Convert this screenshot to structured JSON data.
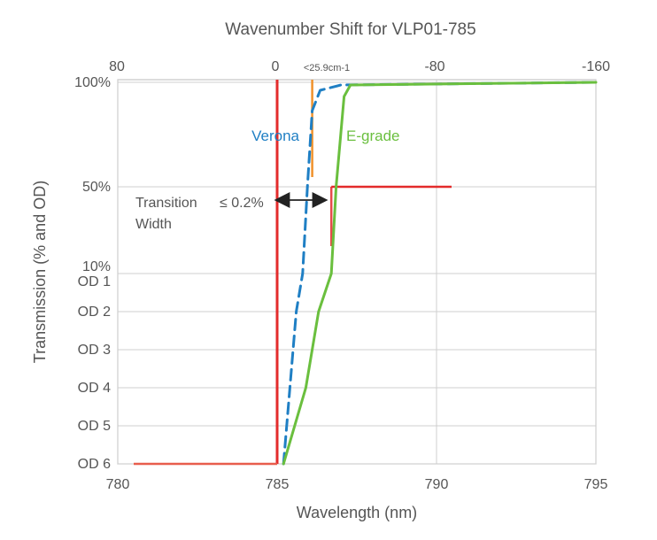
{
  "chart_data": {
    "type": "line",
    "title": "Wavenumber Shift for VLP01-785",
    "xlabel": "Wavelength (nm)",
    "ylabel": "Transmission (% and OD)",
    "xlim": [
      780,
      795
    ],
    "x_ticks": [
      780,
      785,
      790,
      795
    ],
    "x_tick_labels": [
      "780",
      "785",
      "790",
      "795"
    ],
    "top_axis": {
      "label_unit": "",
      "ticks": [
        {
          "value": 80,
          "label": "80"
        },
        {
          "value": 0,
          "label": "0"
        },
        {
          "value": -25.9,
          "label": "<25.9cm-1"
        },
        {
          "value": -80,
          "label": "-80"
        },
        {
          "value": -160,
          "label": "-160"
        }
      ]
    },
    "y_ticks": [
      {
        "label": "100%",
        "level": 100
      },
      {
        "label": "50%",
        "level": 50
      },
      {
        "label": "10%",
        "level": 10
      },
      {
        "label": "OD 1",
        "level": "OD1"
      },
      {
        "label": "OD 2",
        "level": "OD2"
      },
      {
        "label": "OD 3",
        "level": "OD3"
      },
      {
        "label": "OD 4",
        "level": "OD4"
      },
      {
        "label": "OD 5",
        "level": "OD5"
      },
      {
        "label": "OD 6",
        "level": "OD6"
      }
    ],
    "grid": true,
    "legend": "inline labels",
    "series": [
      {
        "name": "Verona",
        "color": "#1f7fc4",
        "style": "dashed",
        "points": [
          [
            785.2,
            "OD6"
          ],
          [
            785.4,
            "OD4"
          ],
          [
            785.6,
            "OD2"
          ],
          [
            785.8,
            "10%"
          ],
          [
            785.95,
            "50%"
          ],
          [
            786.1,
            "80%"
          ],
          [
            786.35,
            "95%"
          ],
          [
            787.0,
            "99%"
          ],
          [
            795.0,
            "100%"
          ]
        ]
      },
      {
        "name": "E-grade",
        "color": "#6abf3e",
        "style": "solid",
        "points": [
          [
            785.2,
            "OD6"
          ],
          [
            785.9,
            "OD4"
          ],
          [
            786.3,
            "OD2"
          ],
          [
            786.7,
            "10%"
          ],
          [
            786.85,
            "50%"
          ],
          [
            787.1,
            "90%"
          ],
          [
            787.3,
            "99%"
          ],
          [
            795.0,
            "100%"
          ]
        ]
      }
    ],
    "annotations": [
      {
        "text": "Transition",
        "type": "label"
      },
      {
        "text": "≤ 0.2%",
        "type": "label"
      },
      {
        "text": "Width",
        "type": "label"
      }
    ],
    "markers": [
      {
        "type": "red-laser-line",
        "x": 785.0,
        "color": "#e32b2b"
      },
      {
        "type": "orange-line",
        "x": 786.1,
        "color": "#f0922b"
      },
      {
        "type": "red-step",
        "x": 786.7,
        "color": "#e32b2b"
      },
      {
        "type": "red-baseline",
        "x_start": 780.5,
        "x_end": 785.0,
        "color": "#e85d4d"
      }
    ]
  }
}
